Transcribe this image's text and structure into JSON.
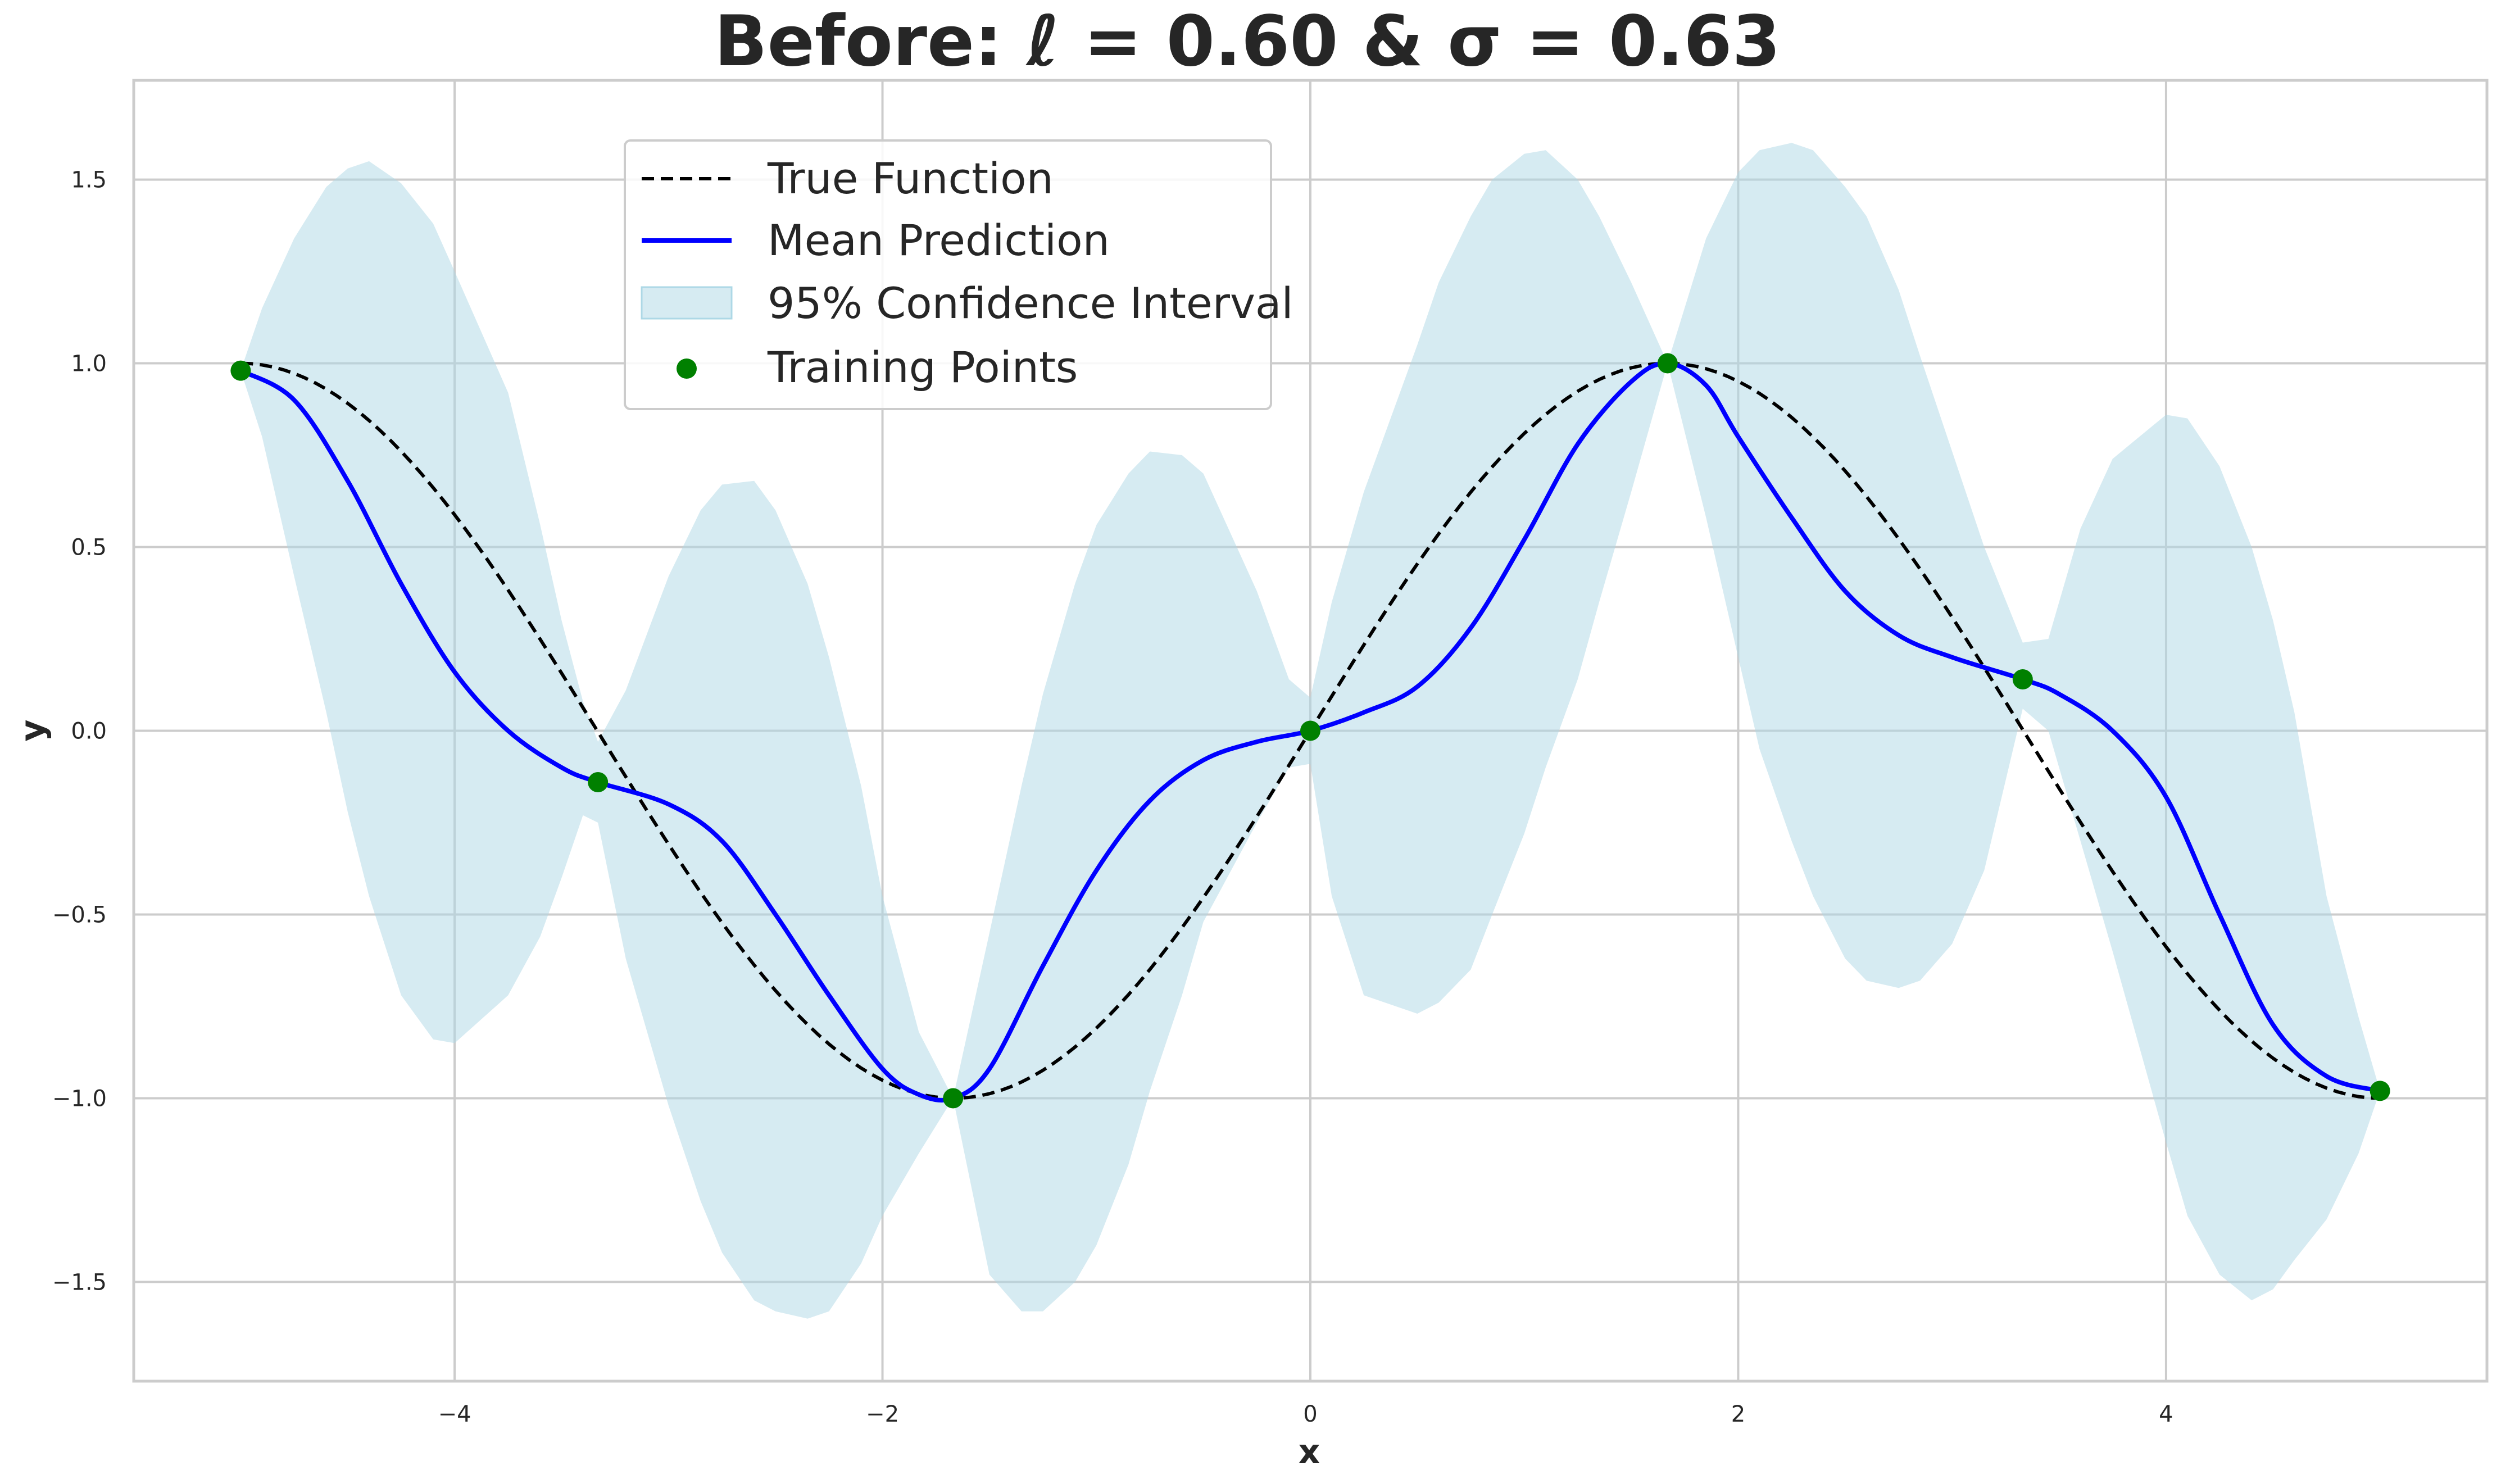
{
  "chart_data": {
    "type": "line",
    "title": "Before: ℓ = 0.60 & σ = 0.63",
    "xlabel": "x",
    "ylabel": "y",
    "xlim": [
      -5.5,
      5.5
    ],
    "ylim": [
      -1.77,
      1.77
    ],
    "xticks": [
      -4,
      -2,
      0,
      2,
      4
    ],
    "yticks": [
      -1.5,
      -1.0,
      -0.5,
      0.0,
      0.5,
      1.0,
      1.5
    ],
    "xtick_labels": [
      "−4",
      "−2",
      "0",
      "2",
      "4"
    ],
    "ytick_labels": [
      "−1.5",
      "−1.0",
      "−0.5",
      "0.0",
      "0.5",
      "1.0",
      "1.5"
    ],
    "grid": true,
    "legend_position": "upper-center",
    "colors": {
      "true_function": "#000000",
      "mean_prediction": "#0000ff",
      "confidence_interval": "#add8e6",
      "training_points": "#008000",
      "grid": "#cccccc",
      "frame": "#cccccc"
    },
    "series": [
      {
        "name": "True Function",
        "style": "dashed",
        "expression": "sin(0.9425·x)"
      },
      {
        "name": "Mean Prediction",
        "style": "solid",
        "x": [
          -5,
          -4.75,
          -4.5,
          -4.25,
          -4,
          -3.75,
          -3.5,
          -3.33,
          -3.0,
          -2.75,
          -2.5,
          -2.25,
          -2.0,
          -1.83,
          -1.67,
          -1.5,
          -1.25,
          -1.0,
          -0.75,
          -0.5,
          -0.25,
          0.0,
          0.25,
          0.5,
          0.75,
          1.0,
          1.25,
          1.5,
          1.67,
          1.85,
          2.0,
          2.25,
          2.5,
          2.75,
          3.0,
          3.33,
          3.5,
          3.75,
          4.0,
          4.25,
          4.5,
          4.75,
          5.0
        ],
        "y": [
          0.98,
          0.9,
          0.68,
          0.4,
          0.16,
          0.0,
          -0.1,
          -0.14,
          -0.2,
          -0.3,
          -0.5,
          -0.72,
          -0.92,
          -0.99,
          -1.0,
          -0.92,
          -0.64,
          -0.38,
          -0.19,
          -0.08,
          -0.03,
          0.0,
          0.05,
          0.12,
          0.28,
          0.52,
          0.78,
          0.95,
          1.0,
          0.94,
          0.8,
          0.58,
          0.38,
          0.26,
          0.2,
          0.14,
          0.1,
          0.0,
          -0.18,
          -0.5,
          -0.8,
          -0.94,
          -0.98
        ]
      },
      {
        "name": "95% Confidence Interval",
        "style": "band",
        "x": [
          -5,
          -4.9,
          -4.75,
          -4.6,
          -4.5,
          -4.4,
          -4.25,
          -4.1,
          -4.0,
          -3.75,
          -3.6,
          -3.5,
          -3.4,
          -3.33,
          -3.2,
          -3.0,
          -2.85,
          -2.75,
          -2.6,
          -2.5,
          -2.35,
          -2.25,
          -2.1,
          -2.0,
          -1.83,
          -1.67,
          -1.5,
          -1.35,
          -1.25,
          -1.1,
          -1.0,
          -0.85,
          -0.75,
          -0.6,
          -0.5,
          -0.25,
          -0.1,
          0.0,
          0.1,
          0.25,
          0.5,
          0.6,
          0.75,
          0.85,
          1.0,
          1.1,
          1.25,
          1.35,
          1.5,
          1.67,
          1.85,
          2.0,
          2.1,
          2.25,
          2.35,
          2.5,
          2.6,
          2.75,
          2.85,
          3.0,
          3.15,
          3.33,
          3.45,
          3.6,
          3.75,
          4.0,
          4.1,
          4.25,
          4.4,
          4.5,
          4.6,
          4.75,
          4.9,
          5.0
        ],
        "upper": [
          0.98,
          1.15,
          1.34,
          1.48,
          1.53,
          1.55,
          1.49,
          1.38,
          1.25,
          0.92,
          0.56,
          0.3,
          0.08,
          -0.03,
          0.11,
          0.42,
          0.6,
          0.67,
          0.68,
          0.6,
          0.4,
          0.2,
          -0.15,
          -0.45,
          -0.82,
          -1.0,
          -0.55,
          -0.15,
          0.1,
          0.4,
          0.56,
          0.7,
          0.76,
          0.75,
          0.7,
          0.38,
          0.14,
          0.09,
          0.35,
          0.65,
          1.05,
          1.22,
          1.4,
          1.5,
          1.57,
          1.58,
          1.5,
          1.4,
          1.22,
          1.0,
          1.34,
          1.52,
          1.58,
          1.6,
          1.58,
          1.48,
          1.4,
          1.2,
          1.02,
          0.76,
          0.5,
          0.24,
          0.25,
          0.55,
          0.74,
          0.86,
          0.85,
          0.72,
          0.5,
          0.3,
          0.05,
          -0.45,
          -0.78,
          -0.98
        ],
        "lower": [
          0.98,
          0.8,
          0.42,
          0.05,
          -0.22,
          -0.45,
          -0.72,
          -0.84,
          -0.85,
          -0.72,
          -0.56,
          -0.4,
          -0.23,
          -0.25,
          -0.62,
          -1.02,
          -1.28,
          -1.42,
          -1.55,
          -1.58,
          -1.6,
          -1.58,
          -1.45,
          -1.32,
          -1.15,
          -1.0,
          -1.48,
          -1.58,
          -1.58,
          -1.5,
          -1.4,
          -1.18,
          -0.98,
          -0.72,
          -0.52,
          -0.25,
          -0.1,
          -0.09,
          -0.45,
          -0.72,
          -0.77,
          -0.74,
          -0.65,
          -0.5,
          -0.28,
          -0.1,
          0.14,
          0.35,
          0.65,
          1.0,
          0.58,
          0.2,
          -0.05,
          -0.3,
          -0.45,
          -0.62,
          -0.68,
          -0.7,
          -0.68,
          -0.58,
          -0.38,
          0.06,
          0.0,
          -0.3,
          -0.6,
          -1.12,
          -1.32,
          -1.48,
          -1.55,
          -1.52,
          -1.44,
          -1.33,
          -1.15,
          -0.98
        ]
      },
      {
        "name": "Training Points",
        "style": "scatter",
        "x": [
          -5.0,
          -3.33,
          -1.67,
          0.0,
          1.67,
          3.33,
          5.0
        ],
        "y": [
          0.98,
          -0.14,
          -1.0,
          0.0,
          1.0,
          0.14,
          -0.98
        ]
      }
    ]
  }
}
